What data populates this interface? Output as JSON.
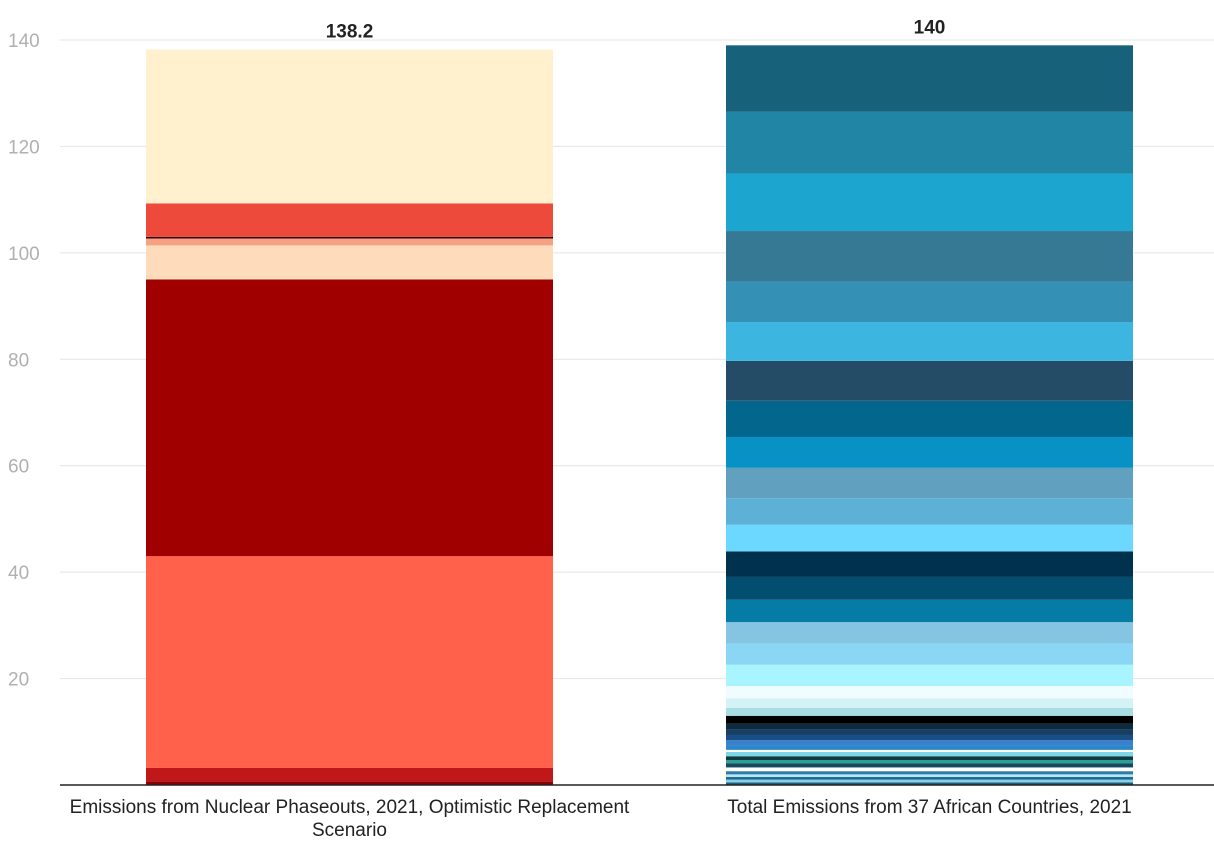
{
  "chart_data": {
    "type": "bar",
    "stacked": true,
    "grid": true,
    "ylim": [
      0,
      140
    ],
    "yticks": [
      20,
      40,
      60,
      80,
      100,
      120,
      140
    ],
    "categories": [
      "Emissions from Nuclear Phaseouts, 2021, Optimistic Replacement Scenario",
      "Total Emissions from 37 African Countries, 2021"
    ],
    "totals": [
      "138.2",
      "140"
    ],
    "bars": [
      {
        "segments": [
          {
            "value": 0.7,
            "color": "#8b0000"
          },
          {
            "value": 2.5,
            "color": "#c01818"
          },
          {
            "value": 39.8,
            "color": "#ff614b"
          },
          {
            "value": 52.0,
            "color": "#a00000"
          },
          {
            "value": 6.4,
            "color": "#fddbbb"
          },
          {
            "value": 1.3,
            "color": "#f7a183"
          },
          {
            "value": 0.3,
            "color": "#2a0000"
          },
          {
            "value": 6.3,
            "color": "#ee4a3c"
          },
          {
            "value": 28.9,
            "color": "#fff0ce"
          }
        ]
      },
      {
        "segments": [
          {
            "value": 0.5,
            "color": "#1c5f80"
          },
          {
            "value": 0.5,
            "color": "#8ad0e8"
          },
          {
            "value": 0.5,
            "color": "#1a6c92"
          },
          {
            "value": 0.5,
            "color": "#b7e5f0"
          },
          {
            "value": 0.6,
            "color": "#2d7da8"
          },
          {
            "value": 0.7,
            "color": "#ffffff"
          },
          {
            "value": 0.8,
            "color": "#174a5e"
          },
          {
            "value": 0.6,
            "color": "#2aa199"
          },
          {
            "value": 0.7,
            "color": "#0f3b3f"
          },
          {
            "value": 0.8,
            "color": "#7fd6e6"
          },
          {
            "value": 0.4,
            "color": "#ffffff"
          },
          {
            "value": 0.9,
            "color": "#2a88c8"
          },
          {
            "value": 0.9,
            "color": "#3a7fd0"
          },
          {
            "value": 1.0,
            "color": "#1a4f86"
          },
          {
            "value": 1.0,
            "color": "#163f63"
          },
          {
            "value": 1.1,
            "color": "#0c2a40"
          },
          {
            "value": 1.5,
            "color": "#000000"
          },
          {
            "value": 1.5,
            "color": "#a8dde3"
          },
          {
            "value": 1.8,
            "color": "#d4f3f7"
          },
          {
            "value": 2.3,
            "color": "#f0fcff"
          },
          {
            "value": 4.0,
            "color": "#a8f4ff"
          },
          {
            "value": 4.0,
            "color": "#8ad6f4"
          },
          {
            "value": 4.0,
            "color": "#86c5e2"
          },
          {
            "value": 4.2,
            "color": "#047ca5"
          },
          {
            "value": 4.3,
            "color": "#024e70"
          },
          {
            "value": 4.8,
            "color": "#01324d"
          },
          {
            "value": 5.0,
            "color": "#6dd8ff"
          },
          {
            "value": 5.0,
            "color": "#5db0d6"
          },
          {
            "value": 5.7,
            "color": "#62a0bf"
          },
          {
            "value": 5.8,
            "color": "#0791c4"
          },
          {
            "value": 6.8,
            "color": "#03668c"
          },
          {
            "value": 7.5,
            "color": "#244c67"
          },
          {
            "value": 7.3,
            "color": "#3cb5e0"
          },
          {
            "value": 7.6,
            "color": "#3590b6"
          },
          {
            "value": 9.5,
            "color": "#367995"
          },
          {
            "value": 10.8,
            "color": "#1ba5cf"
          },
          {
            "value": 11.6,
            "color": "#2185a6"
          },
          {
            "value": 12.5,
            "color": "#17617a"
          }
        ]
      }
    ]
  }
}
